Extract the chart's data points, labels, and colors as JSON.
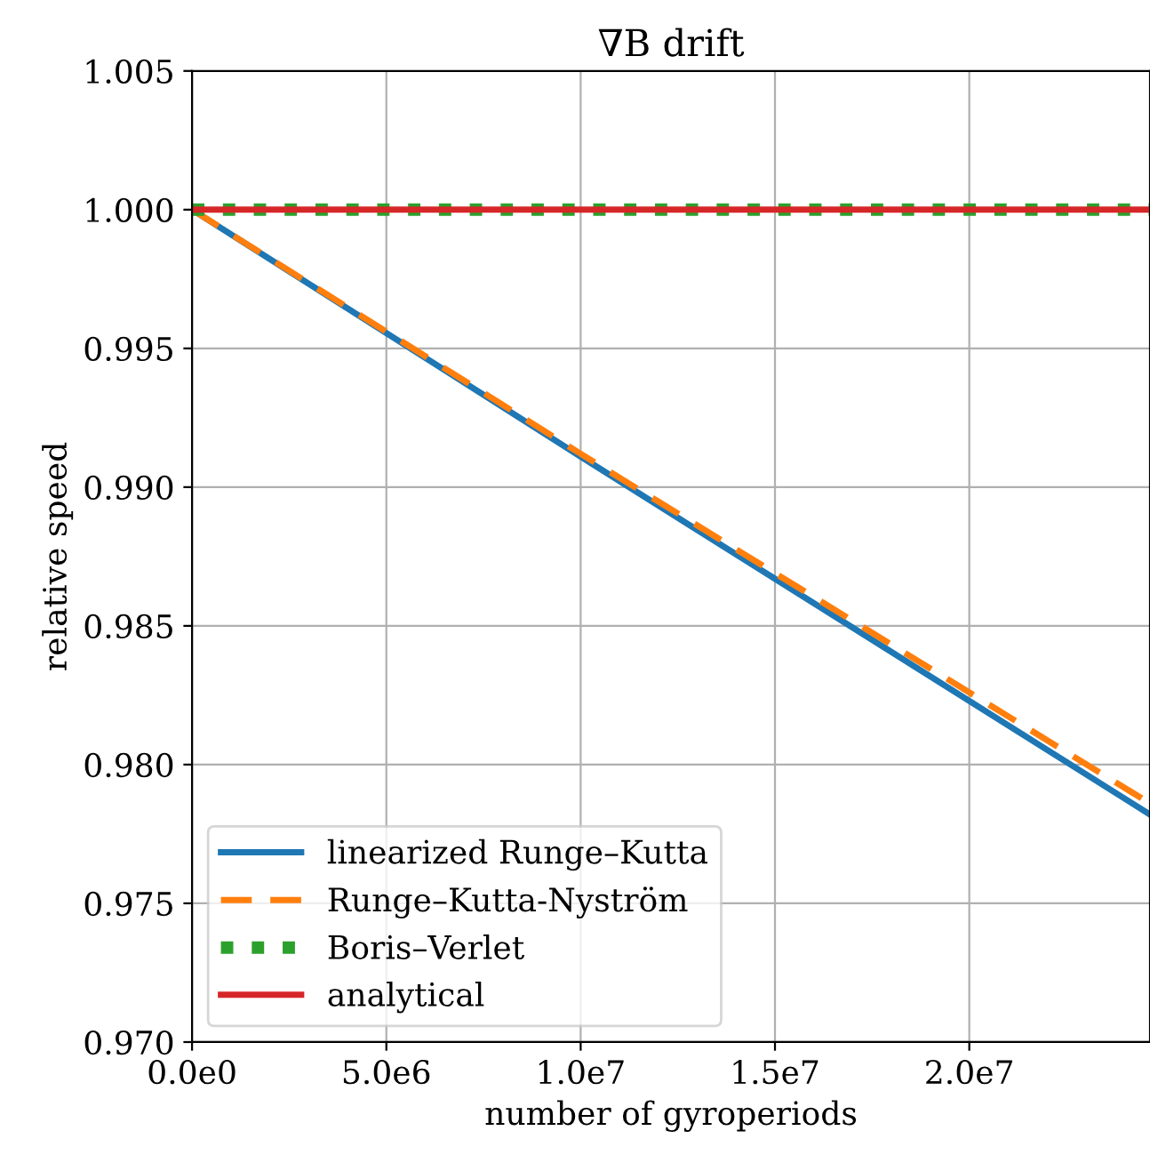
{
  "chart_data": {
    "type": "line",
    "title": "∇B drift",
    "xlabel": "number of gyroperiods",
    "ylabel": "relative speed",
    "xlim": [
      0,
      24650000
    ],
    "ylim": [
      0.97,
      1.005
    ],
    "xticks": [
      {
        "value": 0,
        "label": "0.0e0"
      },
      {
        "value": 5000000,
        "label": "5.0e6"
      },
      {
        "value": 10000000,
        "label": "1.0e7"
      },
      {
        "value": 15000000,
        "label": "1.5e7"
      },
      {
        "value": 20000000,
        "label": "2.0e7"
      }
    ],
    "yticks": [
      {
        "value": 0.97,
        "label": "0.970"
      },
      {
        "value": 0.975,
        "label": "0.975"
      },
      {
        "value": 0.98,
        "label": "0.980"
      },
      {
        "value": 0.985,
        "label": "0.985"
      },
      {
        "value": 0.99,
        "label": "0.990"
      },
      {
        "value": 0.995,
        "label": "0.995"
      },
      {
        "value": 1.0,
        "label": "1.000"
      },
      {
        "value": 1.005,
        "label": "1.005"
      }
    ],
    "grid": true,
    "legend": "bottom left",
    "marker": "none",
    "x": [
      0,
      10000000,
      24650000
    ],
    "series": [
      {
        "name": "linearized Runge–Kutta",
        "color": "#1f77b4",
        "line_style": "solid",
        "values": [
          1.0,
          0.9911,
          0.9782
        ]
      },
      {
        "name": "Runge–Kutta-Nyström",
        "color": "#ff7f0e",
        "line_style": "dashed",
        "values": [
          1.0,
          0.9912,
          0.9786
        ]
      },
      {
        "name": "Boris–Verlet",
        "color": "#2ca02c",
        "line_style": "dotted",
        "values": [
          1.0,
          1.0,
          1.0
        ]
      },
      {
        "name": "analytical",
        "color": "#d62728",
        "line_style": "solid",
        "values": [
          1.0,
          1.0,
          1.0
        ]
      }
    ]
  }
}
